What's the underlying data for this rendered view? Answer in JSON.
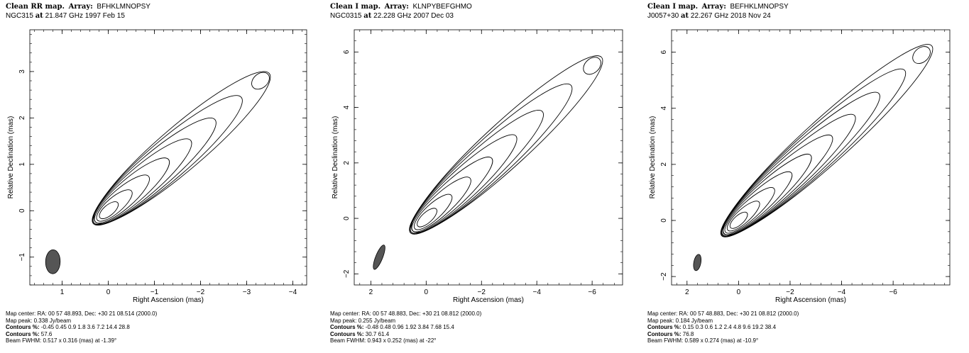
{
  "panels": [
    {
      "header": {
        "line1_bold": "Clean RR map.",
        "array_label": "Array:",
        "array": "BFHKLMNOPSY",
        "source": "NGC315",
        "at": "at",
        "freq_date": "21.847 GHz 1997 Feb 15"
      },
      "footer": {
        "center": "Map center:  RA: 00 57 48.893,  Dec: +30 21 08.514 (2000.0)",
        "peak": "Map peak: 0.338 Jy/beam",
        "contours_label": "Contours %:",
        "contours1": "-0.45 0.45 0.9 1.8 3.6 7.2 14.4 28.8",
        "contours2_label": "Contours %:",
        "contours2": "57.6",
        "beam": "Beam FWHM: 0.517 x 0.316 (mas) at -1.39°"
      },
      "chart_data": {
        "type": "contour",
        "xlabel": "Right Ascension   (mas)",
        "ylabel": "Relative Declination   (mas)",
        "xlim": [
          1.7,
          -4.3
        ],
        "ylim": [
          -1.6,
          3.9
        ],
        "xticks": [
          1,
          0,
          -1,
          -2,
          -3,
          -4
        ],
        "xtick_labels": [
          "1",
          "0",
          "−1",
          "−2",
          "−3",
          "−4"
        ],
        "yticks": [
          -1,
          0,
          1,
          2,
          3
        ],
        "ytick_labels": [
          "−1",
          "0",
          "1",
          "2",
          "3"
        ],
        "core": [
          0.0,
          0.0
        ],
        "jet_pa_deg": 33,
        "jet_end": [
          -3.3,
          2.8
        ],
        "beam": {
          "major": 0.517,
          "minor": 0.316,
          "pa": -1.39,
          "center": [
            1.2,
            -1.1
          ]
        },
        "contour_levels_pct": [
          -0.45,
          0.45,
          0.9,
          1.8,
          3.6,
          7.2,
          14.4,
          28.8,
          57.6
        ]
      }
    },
    {
      "header": {
        "line1_bold": "Clean I map.",
        "array_label": "Array:",
        "array": "KLNPYBEFGHMO",
        "source": "NGC0315",
        "at": "at",
        "freq_date": "22.228 GHz 2007 Dec 03"
      },
      "footer": {
        "center": "Map center:  RA: 00 57 48.883,  Dec: +30 21 08.812 (2000.0)",
        "peak": "Map peak: 0.255 Jy/beam",
        "contours_label": "Contours %:",
        "contours1": "-0.48 0.48 0.96 1.92 3.84 7.68 15.4",
        "contours2_label": "Contours %:",
        "contours2": "30.7 61.4",
        "beam": "Beam FWHM: 0.943 x 0.252 (mas) at -22°"
      },
      "chart_data": {
        "type": "contour",
        "xlabel": "Right Ascension   (mas)",
        "ylabel": "Relative Declination   (mas)",
        "xlim": [
          2.6,
          -7.1
        ],
        "ylim": [
          -2.4,
          6.8
        ],
        "xticks": [
          2,
          0,
          -2,
          -4,
          -6
        ],
        "xtick_labels": [
          "2",
          "0",
          "−2",
          "−4",
          "−6"
        ],
        "yticks": [
          -2,
          0,
          2,
          4,
          6
        ],
        "ytick_labels": [
          "−2",
          "0",
          "2",
          "4",
          "6"
        ],
        "core": [
          0.0,
          0.0
        ],
        "jet_pa_deg": 36,
        "jet_end": [
          -6.0,
          5.5
        ],
        "beam": {
          "major": 0.943,
          "minor": 0.252,
          "pa": -22,
          "center": [
            1.7,
            -1.4
          ]
        },
        "contour_levels_pct": [
          -0.48,
          0.48,
          0.96,
          1.92,
          3.84,
          7.68,
          15.4,
          30.7,
          61.4
        ]
      }
    },
    {
      "header": {
        "line1_bold": "Clean I map.",
        "array_label": "Array:",
        "array": "BEFHKLMNOPSY",
        "source": "J0057+30",
        "at": "at",
        "freq_date": "22.267 GHz 2018 Nov 24"
      },
      "footer": {
        "center": "Map center:  RA: 00 57 48.883,  Dec: +30 21 08.812 (2000.0)",
        "peak": "Map peak: 0.184 Jy/beam",
        "contours_label": "Contours %:",
        "contours1": "0.15 0.3 0.6 1.2 2.4 4.8 9.6 19.2 38.4",
        "contours2_label": "Contours %:",
        "contours2": "76.8",
        "beam": "Beam FWHM: 0.589 x 0.274 (mas) at -10.9°"
      },
      "chart_data": {
        "type": "contour",
        "xlabel": "Right Ascension   (mas)",
        "ylabel": "Relative Declination   (mas)",
        "xlim": [
          2.6,
          -8.2
        ],
        "ylim": [
          -2.3,
          6.8
        ],
        "xticks": [
          2,
          0,
          -2,
          -4,
          -6
        ],
        "xtick_labels": [
          "2",
          "0",
          "−2",
          "−4",
          "−6"
        ],
        "yticks": [
          -2,
          0,
          2,
          4,
          6
        ],
        "ytick_labels": [
          "−2",
          "0",
          "2",
          "4",
          "6"
        ],
        "core": [
          0.0,
          0.0
        ],
        "jet_pa_deg": 35,
        "jet_end": [
          -7.1,
          5.9
        ],
        "beam": {
          "major": 0.589,
          "minor": 0.274,
          "pa": -10.9,
          "center": [
            1.6,
            -1.5
          ]
        },
        "contour_levels_pct": [
          0.15,
          0.3,
          0.6,
          1.2,
          2.4,
          4.8,
          9.6,
          19.2,
          38.4,
          76.8
        ]
      }
    }
  ]
}
